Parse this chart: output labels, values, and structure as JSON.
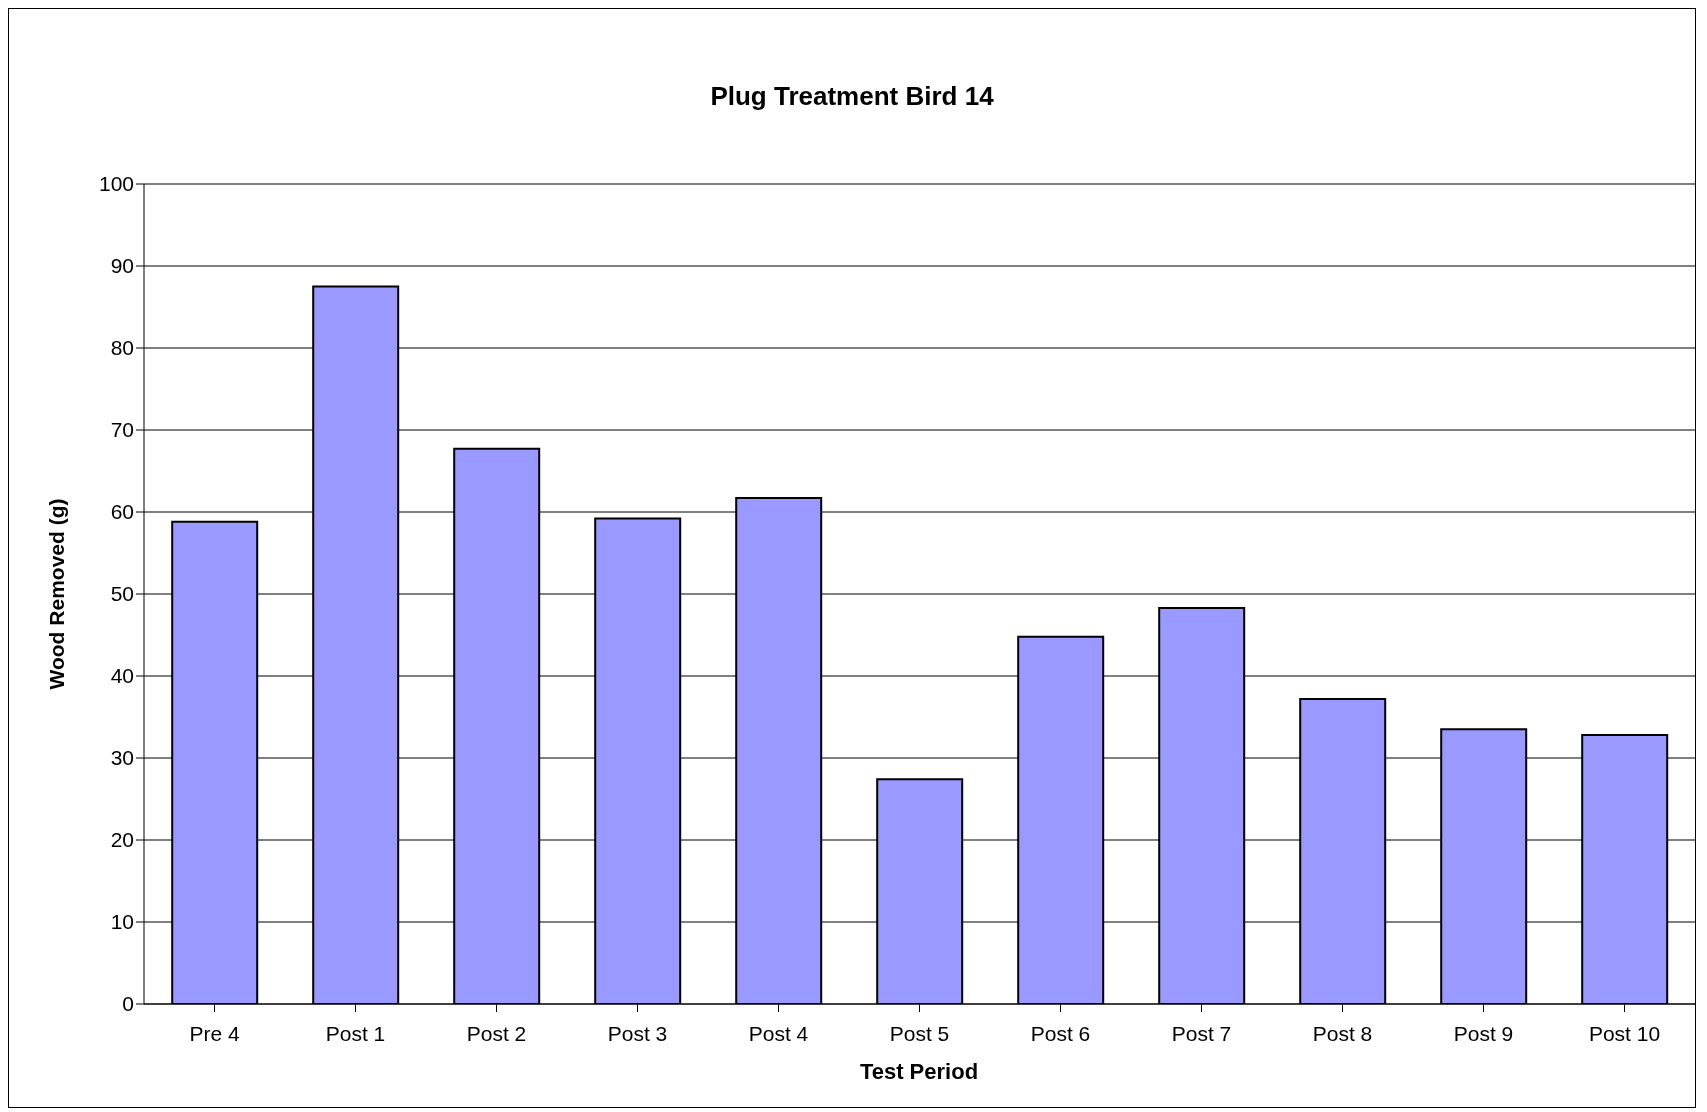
{
  "chart_data": {
    "type": "bar",
    "title": "Plug Treatment Bird 14",
    "xlabel": "Test Period",
    "ylabel": "Wood Removed (g)",
    "categories": [
      "Pre 4",
      "Post 1",
      "Post 2",
      "Post 3",
      "Post 4",
      "Post 5",
      "Post 6",
      "Post 7",
      "Post 8",
      "Post 9",
      "Post 10"
    ],
    "values": [
      58.8,
      87.5,
      67.7,
      59.2,
      61.7,
      27.4,
      44.8,
      48.3,
      37.2,
      33.5,
      32.8
    ],
    "color": "#9999ff",
    "ylim": [
      0,
      100
    ],
    "yticks": [
      0,
      10,
      20,
      30,
      40,
      50,
      60,
      70,
      80,
      90,
      100
    ],
    "grid": "y"
  }
}
